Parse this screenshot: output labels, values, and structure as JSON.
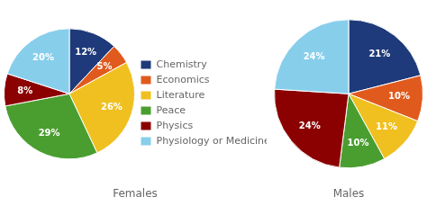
{
  "chart_data": [
    {
      "type": "pie",
      "title": "Females",
      "categories": [
        "Chemistry",
        "Economics",
        "Literature",
        "Peace",
        "Physics",
        "Physiology or Medicine"
      ],
      "values": [
        12,
        5,
        26,
        29,
        8,
        20
      ],
      "value_labels": [
        "12%",
        "5%",
        "26%",
        "29%",
        "8%",
        "20%"
      ],
      "colors": [
        "#1e3a7a",
        "#e05a1e",
        "#f0c020",
        "#4a9e2f",
        "#8b0000",
        "#87ceeb"
      ],
      "data_labels": true,
      "legend": "right"
    },
    {
      "type": "pie",
      "title": "Males",
      "categories": [
        "Chemistry",
        "Economics",
        "Literature",
        "Peace",
        "Physics",
        "Physiology or Medicine"
      ],
      "values": [
        21,
        10,
        11,
        10,
        24,
        24
      ],
      "value_labels": [
        "21%",
        "10%",
        "11%",
        "10%",
        "24%",
        "24%"
      ],
      "colors": [
        "#1e3a7a",
        "#e05a1e",
        "#f0c020",
        "#4a9e2f",
        "#8b0000",
        "#87ceeb"
      ],
      "data_labels": true
    }
  ]
}
